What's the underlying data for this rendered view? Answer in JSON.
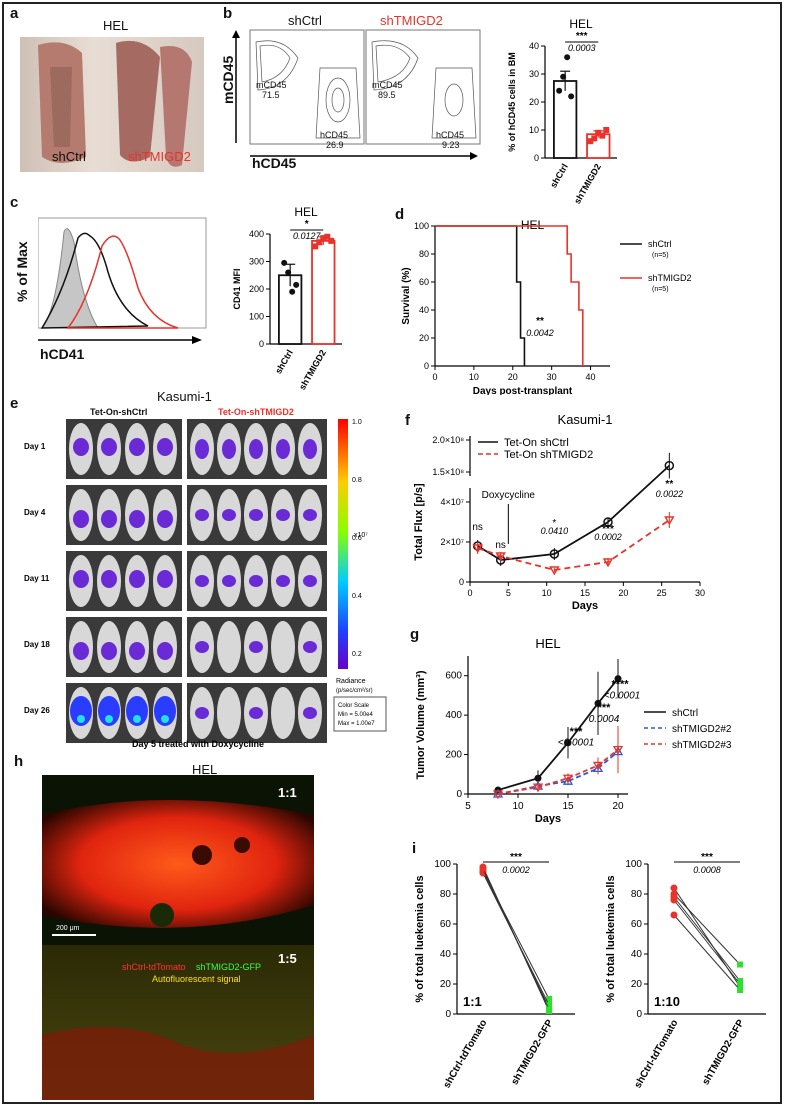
{
  "panel_letters": {
    "a": "a",
    "b": "b",
    "c": "c",
    "d": "d",
    "e": "e",
    "f": "f",
    "g": "g",
    "h": "h",
    "i": "i"
  },
  "panel_a": {
    "title": "HEL",
    "left": "shCtrl",
    "right": "shTMIGD2"
  },
  "panel_b": {
    "left_title": "shCtrl",
    "right_title": "shTMIGD2",
    "y_axis": "mCD45",
    "x_axis": "hCD45",
    "left_gates": {
      "m": "mCD45",
      "m_val": "71.5",
      "h": "hCD45",
      "h_val": "26.9"
    },
    "right_gates": {
      "m": "mCD45",
      "m_val": "89.5",
      "h": "hCD45",
      "h_val": "9.23"
    }
  },
  "panel_c_hist": {
    "y_axis": "% of Max",
    "x_axis": "hCD41"
  },
  "colors": {
    "red": "#e8322a",
    "black": "#111111",
    "blue": "#2a5bd7",
    "purple": "#6a2ad6",
    "grey": "#bdbdbd"
  },
  "chart_data": [
    {
      "type": "bar",
      "id": "b-bar",
      "title": "HEL",
      "ylabel": "% of hCD45 cells in BM",
      "categories": [
        "shCtrl",
        "shTMIGD2"
      ],
      "values": [
        27.5,
        8.5
      ],
      "errors": [
        3.5,
        1.2
      ],
      "points": [
        [
          24,
          29,
          36,
          22
        ],
        [
          6,
          7,
          9,
          8,
          10
        ]
      ],
      "ylim": [
        0,
        40
      ],
      "yticks": [
        0,
        10,
        20,
        30,
        40
      ],
      "sig": "***",
      "p": "0.0003"
    },
    {
      "type": "bar",
      "id": "c-bar",
      "title": "HEL",
      "ylabel": "CD41 MFI",
      "categories": [
        "shCtrl",
        "shTMIGD2"
      ],
      "values": [
        250,
        375
      ],
      "errors": [
        40,
        15
      ],
      "points": [
        [
          295,
          260,
          190,
          215
        ],
        [
          355,
          370,
          385,
          390,
          375
        ]
      ],
      "ylim": [
        0,
        400
      ],
      "yticks": [
        0,
        100,
        200,
        300,
        400
      ],
      "sig": "*",
      "p": "0.0127"
    },
    {
      "type": "line",
      "id": "d-surv",
      "title": "HEL",
      "xlabel": "Days post-transplant",
      "ylabel": "Survival (%)",
      "xlim": [
        0,
        45
      ],
      "ylim": [
        0,
        100
      ],
      "xticks": [
        0,
        10,
        20,
        30,
        40
      ],
      "yticks": [
        0,
        20,
        40,
        60,
        80,
        100
      ],
      "series": [
        {
          "name": "shCtrl",
          "n": "(n=5)",
          "x": [
            0,
            20,
            20,
            21,
            21,
            21,
            21,
            22,
            22,
            23,
            23
          ],
          "y": [
            100,
            100,
            100,
            100,
            80,
            80,
            60,
            60,
            20,
            20,
            0
          ]
        },
        {
          "name": "shTMIGD2",
          "n": "(n=5)",
          "x": [
            0,
            28,
            28,
            34,
            34,
            35,
            35,
            37,
            37,
            38,
            38
          ],
          "y": [
            100,
            100,
            100,
            100,
            80,
            80,
            60,
            60,
            40,
            40,
            0
          ]
        }
      ],
      "sig": "**",
      "p": "0.0042"
    },
    {
      "type": "line",
      "id": "f-flux",
      "title": "Kasumi-1",
      "xlabel": "Days",
      "ylabel": "Total Flux [p/s]",
      "xticks": [
        0,
        5,
        10,
        15,
        20,
        25,
        30
      ],
      "yticks_labels": [
        "0",
        "2×10⁷",
        "4×10⁷",
        "1.5×10⁸",
        "2.0×10⁸"
      ],
      "series": [
        {
          "name": "Tet-On shCtrl",
          "x": [
            1,
            4,
            11,
            18,
            26
          ],
          "y": [
            18000000.0,
            11000000.0,
            14000000.0,
            30000000.0,
            160000000.0
          ],
          "err": [
            3000000.0,
            3000000.0,
            3000000.0,
            2000000.0,
            20000000.0
          ]
        },
        {
          "name": "Tet-On shTMIGD2",
          "x": [
            1,
            4,
            11,
            18,
            26
          ],
          "y": [
            17000000.0,
            13000000.0,
            6000000.0,
            10000000.0,
            31000000.0
          ],
          "err": [
            3000000.0,
            2000000.0,
            1000000.0,
            2000000.0,
            4000000.0
          ]
        }
      ],
      "annotations": {
        "dox": "Doxycycline",
        "ns1": "ns",
        "ns2": "ns",
        "s11": "*",
        "p11": "0.0410",
        "s18": "***",
        "p18": "0.0002",
        "s26": "**",
        "p26": "0.0022"
      }
    },
    {
      "type": "line",
      "id": "g-tumor",
      "title": "HEL",
      "xlabel": "Days",
      "ylabel": "Tumor Volume (mm³)",
      "xlim": [
        5,
        21
      ],
      "ylim": [
        0,
        700
      ],
      "xticks": [
        5,
        10,
        15,
        20
      ],
      "yticks": [
        0,
        200,
        400,
        600
      ],
      "series": [
        {
          "name": "shCtrl",
          "x": [
            8,
            12,
            15,
            18,
            20
          ],
          "y": [
            20,
            80,
            260,
            460,
            585
          ],
          "err": [
            10,
            40,
            80,
            160,
            100
          ]
        },
        {
          "name": "shTMIGD2#2",
          "x": [
            8,
            12,
            15,
            18,
            20
          ],
          "y": [
            0,
            40,
            65,
            130,
            215
          ],
          "err": [
            5,
            15,
            20,
            30,
            40
          ]
        },
        {
          "name": "shTMIGD2#3",
          "x": [
            8,
            12,
            15,
            18,
            20
          ],
          "y": [
            0,
            35,
            80,
            145,
            225
          ],
          "err": [
            5,
            15,
            25,
            40,
            120
          ]
        }
      ],
      "annotations": {
        "s15": "***",
        "p15": "<0.0001",
        "s18": "***",
        "p18": "0.0004",
        "s20": "****",
        "p20": "<0.0001"
      }
    },
    {
      "type": "scatter",
      "id": "i-left",
      "ylabel": "% of total luekemia cells",
      "ratio": "1:1",
      "categories": [
        "shCtrl-tdTomato",
        "shTMIGD2-GFP"
      ],
      "ylim": [
        0,
        100
      ],
      "yticks": [
        0,
        20,
        40,
        60,
        80,
        100
      ],
      "pairs": [
        [
          98,
          2
        ],
        [
          96,
          4
        ],
        [
          95,
          10
        ],
        [
          94,
          6
        ],
        [
          97,
          3
        ]
      ],
      "sig": "***",
      "p": "0.0002"
    },
    {
      "type": "scatter",
      "id": "i-right",
      "ylabel": "% of total luekemia cells",
      "ratio": "1:10",
      "categories": [
        "shCtrl-tdTomato",
        "shTMIGD2-GFP"
      ],
      "ylim": [
        0,
        100
      ],
      "yticks": [
        0,
        20,
        40,
        60,
        80,
        100
      ],
      "pairs": [
        [
          84,
          18
        ],
        [
          80,
          33
        ],
        [
          78,
          22
        ],
        [
          76,
          20
        ],
        [
          66,
          16
        ]
      ],
      "sig": "***",
      "p": "0.0008"
    }
  ],
  "panel_e": {
    "title": "Kasumi-1",
    "left_group": "Tet-On-shCtrl",
    "right_group": "Tet-On-shTMIGD2",
    "days": [
      "Day 1",
      "Day 4",
      "Day 11",
      "Day 18",
      "Day 26"
    ],
    "scale_ticks": [
      "1.0",
      "0.8",
      "0.6",
      "0.4",
      "0.2"
    ],
    "scale_unit": "x10⁷",
    "radiance": "Radiance",
    "radiance_unit": "(p/sec/cm²/sr)",
    "color_scale": "Color Scale",
    "min": "Min = 5.00e4",
    "max": "Max = 1.00e7",
    "footer": "Day 5 treated with Doxycycline"
  },
  "panel_h": {
    "title": "HEL",
    "ratio_top": "1:1",
    "ratio_bottom": "1:5",
    "legend_red": "shCtrl-tdTomato",
    "legend_green": "shTMIGD2-GFP",
    "legend_yellow": "Autofluorescent signal",
    "scale": "200 μm"
  }
}
